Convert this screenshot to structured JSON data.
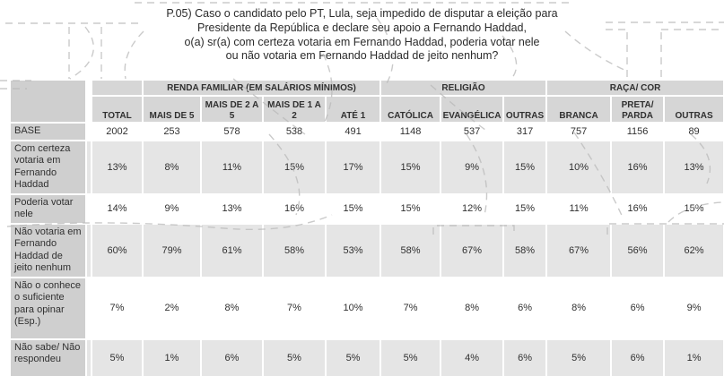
{
  "title": {
    "text": "P.05) Caso o candidato pelo PT, Lula, seja impedido de disputar a eleição para\nPresidente da República e declare seu apoio a Fernando Haddad,\no(a) sr(a) com certeza votaria em Fernando Haddad, poderia votar nele\nou não votaria em Fernando Haddad de jeito nenhum?"
  },
  "table": {
    "group_headers": [
      {
        "label": "",
        "colspan": 1
      },
      {
        "label": "RENDA FAMILIAR (EM SALÁRIOS MÍNIMOS)",
        "colspan": 4
      },
      {
        "label": "RELIGIÃO",
        "colspan": 3
      },
      {
        "label": "RAÇA/ COR",
        "colspan": 3
      }
    ],
    "column_headers": [
      "TOTAL",
      "MAIS DE 5",
      "MAIS DE 2 A\n5",
      "MAIS DE 1 A\n2",
      "ATÉ 1",
      "CATÓLICA",
      "EVANGÉLICA",
      "OUTRAS",
      "BRANCA",
      "PRETA/\nPARDA",
      "OUTRAS"
    ],
    "rows": [
      {
        "label": "BASE",
        "values": [
          "2002",
          "253",
          "578",
          "538",
          "491",
          "1148",
          "537",
          "317",
          "757",
          "1156",
          "89"
        ]
      },
      {
        "label": "Com certeza votaria em Fernando Haddad",
        "values": [
          "13%",
          "8%",
          "11%",
          "15%",
          "17%",
          "15%",
          "9%",
          "15%",
          "10%",
          "16%",
          "13%"
        ]
      },
      {
        "label": "Poderia votar nele",
        "values": [
          "14%",
          "9%",
          "13%",
          "16%",
          "15%",
          "15%",
          "12%",
          "15%",
          "11%",
          "16%",
          "15%"
        ]
      },
      {
        "label": "Não votaria em Fernando Haddad de jeito nenhum",
        "values": [
          "60%",
          "79%",
          "61%",
          "58%",
          "53%",
          "58%",
          "67%",
          "58%",
          "67%",
          "56%",
          "62%"
        ]
      },
      {
        "label": "Não o conhece o suficiente para opinar (Esp.)",
        "values": [
          "7%",
          "2%",
          "8%",
          "7%",
          "10%",
          "7%",
          "8%",
          "6%",
          "8%",
          "6%",
          "9%"
        ]
      },
      {
        "label": "Não sabe/ Não respondeu",
        "values": [
          "5%",
          "1%",
          "6%",
          "5%",
          "5%",
          "5%",
          "4%",
          "6%",
          "5%",
          "6%",
          "1%"
        ]
      }
    ]
  },
  "colors": {
    "header_bg": "#d6d6d6",
    "label_bg": "#cfcfcf",
    "stripe_bg": "#e5e5e5",
    "text": "#303030",
    "watermark": "#b9b9b9"
  }
}
